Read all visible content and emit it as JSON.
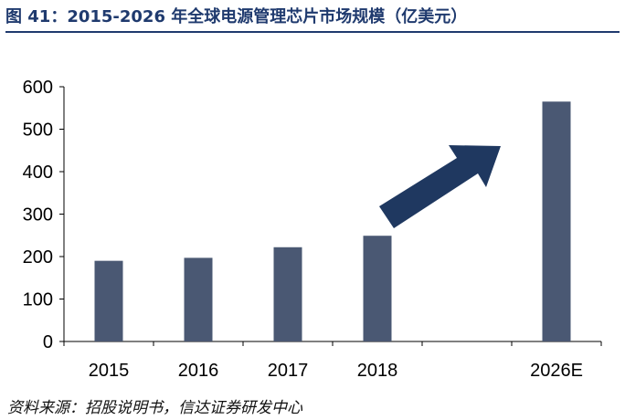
{
  "figure": {
    "title": "图 41：2015-2026 年全球电源管理芯片市场规模（亿美元）",
    "source": "资料来源：招股说明书，信达证券研发中心"
  },
  "colors": {
    "bar": "#4a5873",
    "arrow": "#1f3860",
    "title": "#1f3a6e"
  },
  "chart_data": {
    "type": "bar",
    "categories": [
      "2015",
      "2016",
      "2017",
      "2018",
      "",
      "2026E"
    ],
    "values": [
      190,
      197,
      222,
      249,
      null,
      565
    ],
    "title": "",
    "xlabel": "",
    "ylabel": "",
    "ylim": [
      0,
      600
    ],
    "yticks": [
      0,
      100,
      200,
      300,
      400,
      500,
      600
    ],
    "grid": false,
    "legend": "none",
    "annotation": "upward-arrow"
  }
}
